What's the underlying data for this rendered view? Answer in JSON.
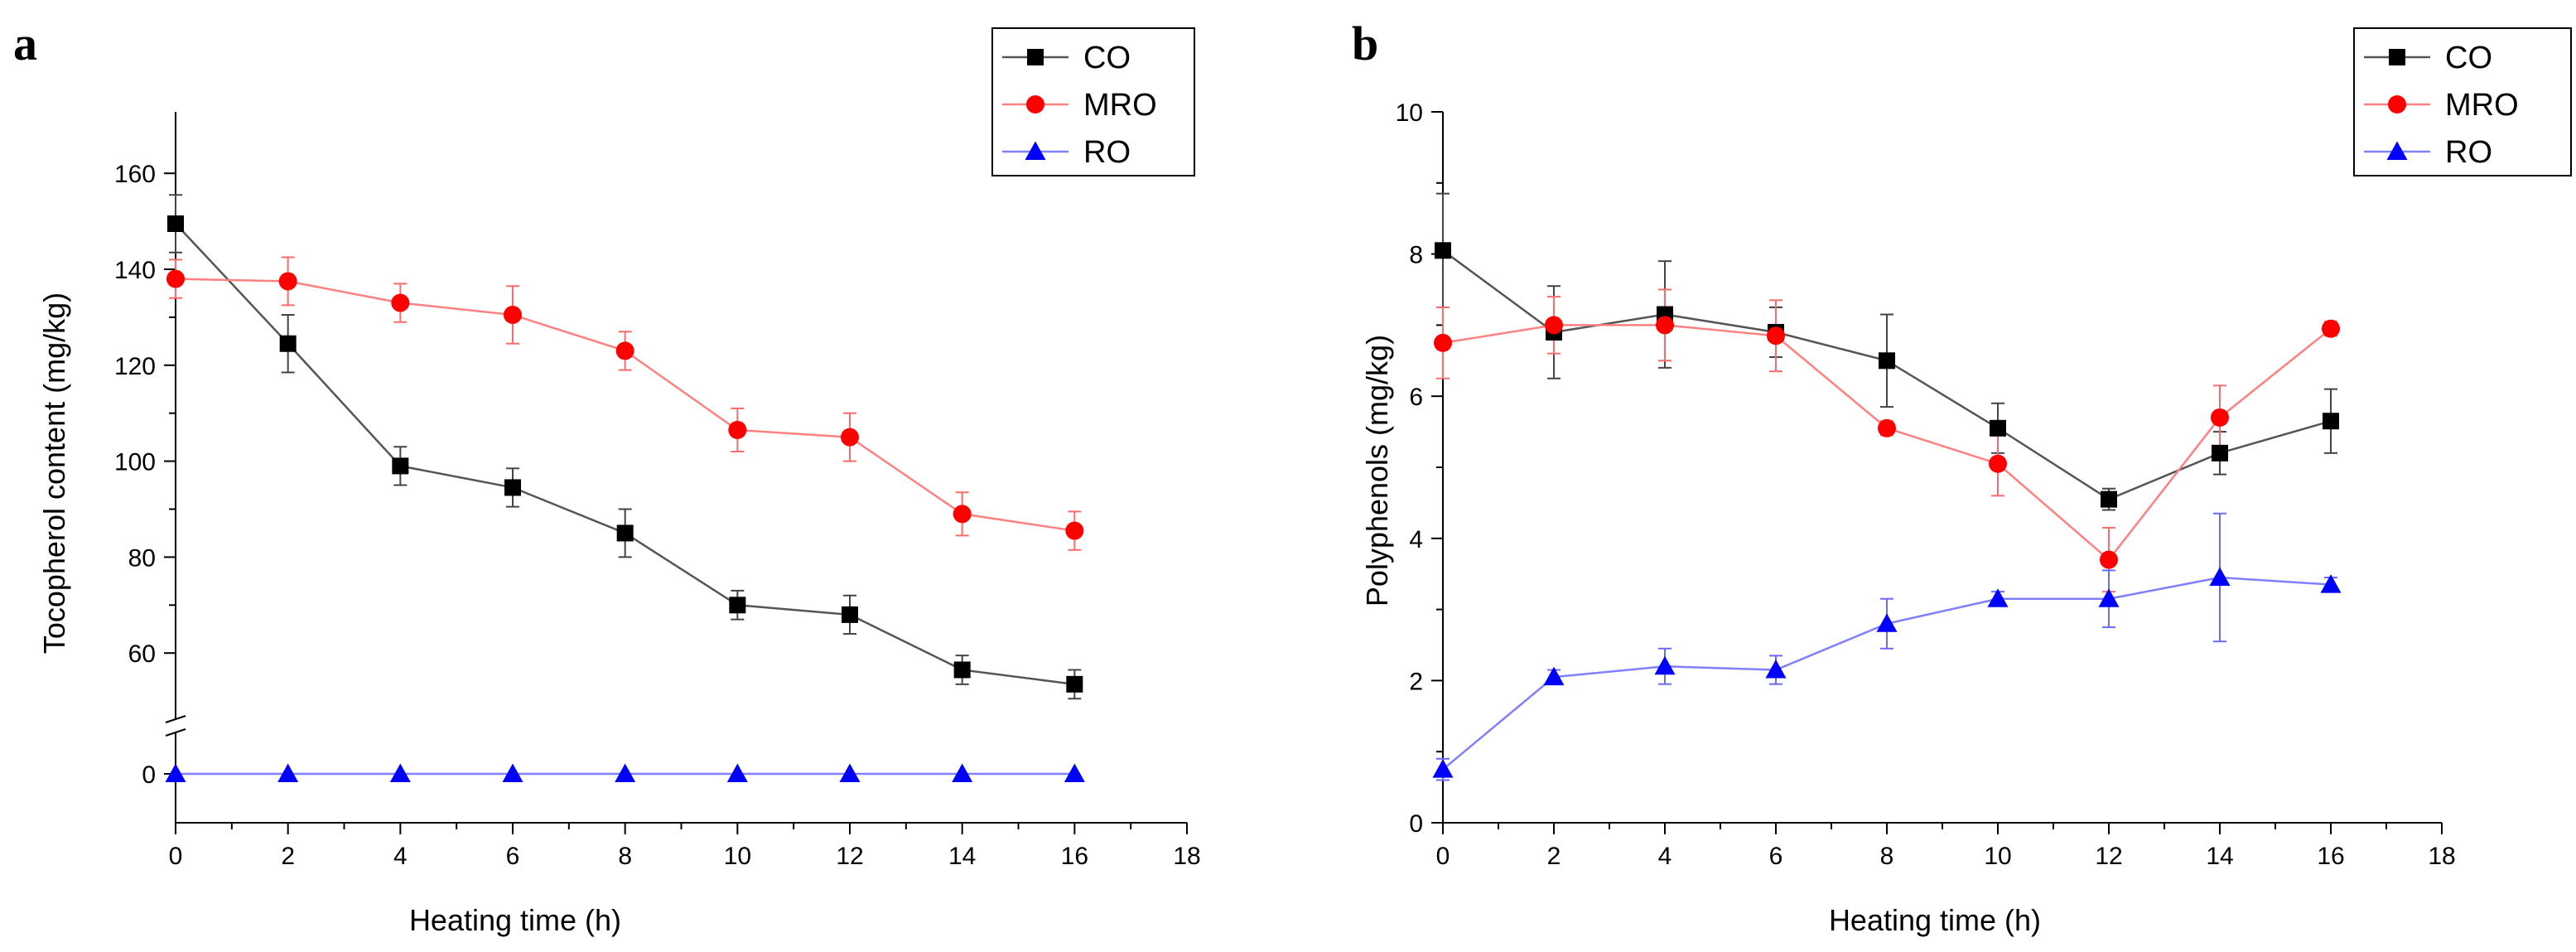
{
  "chart_data": [
    {
      "panel_label": "a",
      "type": "line",
      "title": "",
      "xlabel": "Heating time (h)",
      "ylabel": "Tocopherol content (mg/kg)",
      "xlim": [
        0,
        18
      ],
      "xticks": [
        "0",
        "2",
        "4",
        "6",
        "8",
        "10",
        "12",
        "14",
        "16",
        "18"
      ],
      "axis_break": true,
      "ylim_upper": [
        45,
        170
      ],
      "ylim_lower": [
        -10,
        8
      ],
      "yticks": [
        "0",
        "60",
        "80",
        "100",
        "120",
        "140",
        "160"
      ],
      "grid": false,
      "legend_position": "top-right",
      "x": [
        0,
        2,
        4,
        6,
        8,
        10,
        12,
        14,
        16
      ],
      "series": [
        {
          "name": "CO",
          "color": "#000000",
          "marker": "square",
          "values": [
            149.5,
            124.5,
            99,
            94.5,
            85,
            70,
            68,
            56.5,
            53.5
          ],
          "errors": [
            6,
            6,
            4,
            4,
            5,
            3,
            4,
            3,
            3
          ]
        },
        {
          "name": "MRO",
          "color": "#ff0000",
          "marker": "circle",
          "values": [
            138,
            137.5,
            133,
            130.5,
            123,
            106.5,
            105,
            89,
            85.5
          ],
          "errors": [
            4,
            5,
            4,
            6,
            4,
            4.5,
            5,
            4.5,
            4
          ]
        },
        {
          "name": "RO",
          "color": "#0000ff",
          "marker": "triangle",
          "values": [
            0,
            0,
            0,
            0,
            0,
            0,
            0,
            0,
            0
          ],
          "errors": [
            0,
            0,
            0,
            0,
            0,
            0,
            0,
            0,
            0
          ]
        }
      ]
    },
    {
      "panel_label": "b",
      "type": "line",
      "title": "",
      "xlabel": "Heating time (h)",
      "ylabel": "Polyphenols (mg/kg)",
      "xlim": [
        0,
        18
      ],
      "xticks": [
        "0",
        "2",
        "4",
        "6",
        "8",
        "10",
        "12",
        "14",
        "16",
        "18"
      ],
      "ylim": [
        0,
        10
      ],
      "yticks": [
        "0",
        "2",
        "4",
        "6",
        "8",
        "10"
      ],
      "grid": false,
      "legend_position": "top-right",
      "x": [
        0,
        2,
        4,
        6,
        8,
        10,
        12,
        14,
        16
      ],
      "series": [
        {
          "name": "CO",
          "color": "#000000",
          "marker": "square",
          "values": [
            8.05,
            6.9,
            7.15,
            6.9,
            6.5,
            5.55,
            4.55,
            5.2,
            5.65
          ],
          "errors": [
            0.8,
            0.65,
            0.75,
            0.35,
            0.65,
            0.35,
            0.15,
            0.3,
            0.45
          ]
        },
        {
          "name": "MRO",
          "color": "#ff0000",
          "marker": "circle",
          "values": [
            6.75,
            7.0,
            7.0,
            6.85,
            5.55,
            5.05,
            3.7,
            5.7,
            6.95
          ],
          "errors": [
            0.5,
            0.4,
            0.5,
            0.5,
            0.1,
            0.45,
            0.45,
            0.45,
            0.1
          ]
        },
        {
          "name": "RO",
          "color": "#0000ff",
          "marker": "triangle",
          "values": [
            0.75,
            2.05,
            2.2,
            2.15,
            2.8,
            3.15,
            3.15,
            3.45,
            3.35
          ],
          "errors": [
            0.15,
            0.1,
            0.25,
            0.2,
            0.35,
            0.1,
            0.4,
            0.9,
            0.1
          ]
        }
      ]
    }
  ]
}
